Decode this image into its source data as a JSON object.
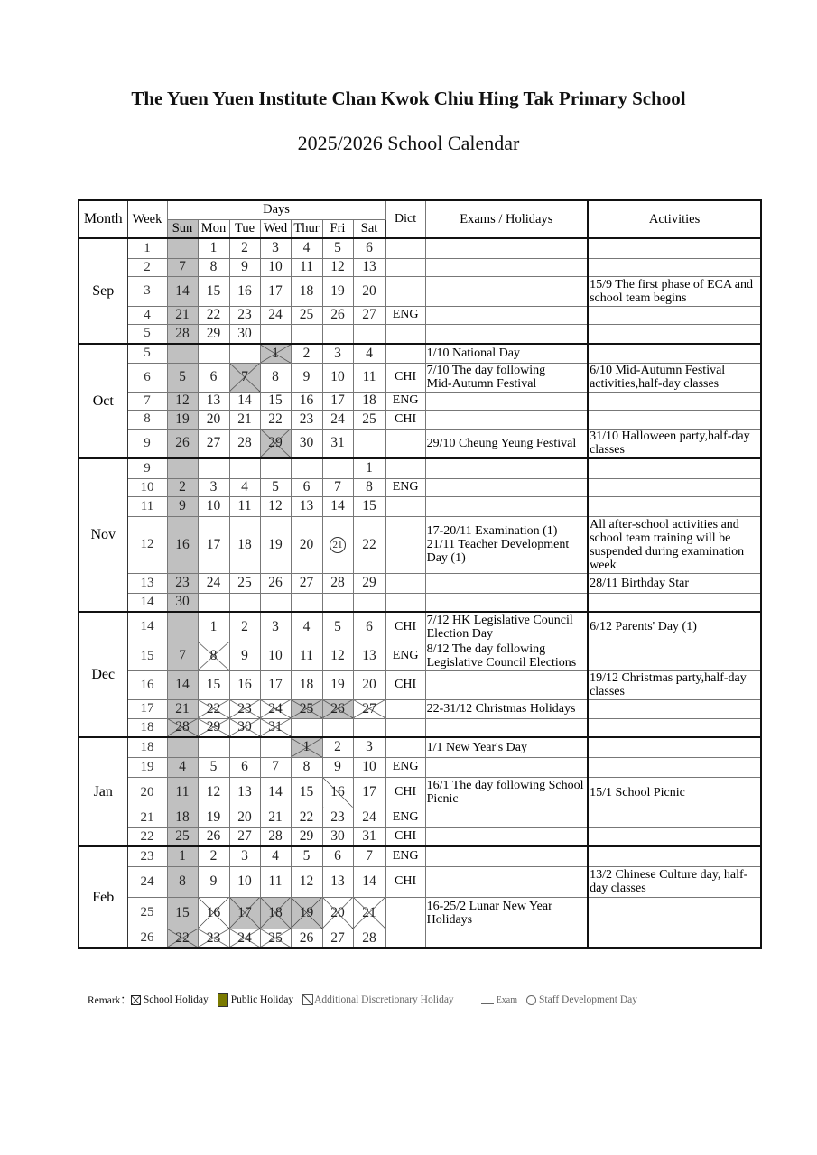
{
  "title": "The Yuen Yuen Institute Chan Kwok Chiu Hing Tak Primary School",
  "subtitle": "2025/2026 School Calendar",
  "headers": {
    "month": "Month",
    "week": "Week",
    "days": "Days",
    "weekdays": [
      "Sun",
      "Mon",
      "Tue",
      "Wed",
      "Thur",
      "Fri",
      "Sat"
    ],
    "dict": "Dict",
    "exams": "Exams / Holidays",
    "activities": "Activities"
  },
  "colors": {
    "sunday_shade": "#c0c0c0",
    "public_holiday_legend": "#7a7a00"
  },
  "mark_codes": {
    "X": "school-holiday",
    "P": "public-holiday",
    "S": "additional-discretionary-holiday",
    "U": "exam",
    "O": "staff-development-day"
  },
  "months": [
    {
      "name": "Sep",
      "rows": [
        {
          "week": "1",
          "days": [
            "",
            "1",
            "2",
            "3",
            "4",
            "5",
            "6"
          ],
          "marks": [
            "",
            "",
            "",
            "",
            "",
            "",
            ""
          ],
          "dict": "",
          "exam": "",
          "activity": ""
        },
        {
          "week": "2",
          "days": [
            "7",
            "8",
            "9",
            "10",
            "11",
            "12",
            "13"
          ],
          "marks": [
            "",
            "",
            "",
            "",
            "",
            "",
            ""
          ],
          "dict": "",
          "exam": "",
          "activity": ""
        },
        {
          "week": "3",
          "days": [
            "14",
            "15",
            "16",
            "17",
            "18",
            "19",
            "20"
          ],
          "marks": [
            "",
            "",
            "",
            "",
            "",
            "",
            ""
          ],
          "dict": "",
          "exam": "",
          "activity": "15/9 The first phase of ECA and school team begins"
        },
        {
          "week": "4",
          "days": [
            "21",
            "22",
            "23",
            "24",
            "25",
            "26",
            "27"
          ],
          "marks": [
            "",
            "",
            "",
            "",
            "",
            "",
            ""
          ],
          "dict": "ENG",
          "exam": "",
          "activity": ""
        },
        {
          "week": "5",
          "days": [
            "28",
            "29",
            "30",
            "",
            "",
            "",
            ""
          ],
          "marks": [
            "",
            "",
            "",
            "",
            "",
            "",
            ""
          ],
          "dict": "",
          "exam": "",
          "activity": ""
        }
      ]
    },
    {
      "name": "Oct",
      "rows": [
        {
          "week": "5",
          "days": [
            "",
            "",
            "",
            "1",
            "2",
            "3",
            "4"
          ],
          "marks": [
            "",
            "",
            "",
            "P",
            "",
            "",
            ""
          ],
          "dict": "",
          "exam": "1/10 National Day",
          "activity": ""
        },
        {
          "week": "6",
          "days": [
            "5",
            "6",
            "7",
            "8",
            "9",
            "10",
            "11"
          ],
          "marks": [
            "",
            "",
            "P",
            "",
            "",
            "",
            ""
          ],
          "dict": "CHI",
          "exam": "7/10 The day following\n  Mid-Autumn Festival",
          "activity": "6/10 Mid-Autumn Festival activities,half-day classes"
        },
        {
          "week": "7",
          "days": [
            "12",
            "13",
            "14",
            "15",
            "16",
            "17",
            "18"
          ],
          "marks": [
            "",
            "",
            "",
            "",
            "",
            "",
            ""
          ],
          "dict": "ENG",
          "exam": "",
          "activity": ""
        },
        {
          "week": "8",
          "days": [
            "19",
            "20",
            "21",
            "22",
            "23",
            "24",
            "25"
          ],
          "marks": [
            "",
            "",
            "",
            "",
            "",
            "",
            ""
          ],
          "dict": "CHI",
          "exam": "",
          "activity": ""
        },
        {
          "week": "9",
          "days": [
            "26",
            "27",
            "28",
            "29",
            "30",
            "31",
            ""
          ],
          "marks": [
            "",
            "",
            "",
            "P",
            "",
            "",
            ""
          ],
          "dict": "",
          "exam": "29/10 Cheung Yeung Festival",
          "activity": "31/10 Halloween party,half-day classes"
        }
      ]
    },
    {
      "name": "Nov",
      "rows": [
        {
          "week": "9",
          "days": [
            "",
            "",
            "",
            "",
            "",
            "",
            "1"
          ],
          "marks": [
            "",
            "",
            "",
            "",
            "",
            "",
            ""
          ],
          "dict": "",
          "exam": "",
          "activity": ""
        },
        {
          "week": "10",
          "days": [
            "2",
            "3",
            "4",
            "5",
            "6",
            "7",
            "8"
          ],
          "marks": [
            "",
            "",
            "",
            "",
            "",
            "",
            ""
          ],
          "dict": "ENG",
          "exam": "",
          "activity": ""
        },
        {
          "week": "11",
          "days": [
            "9",
            "10",
            "11",
            "12",
            "13",
            "14",
            "15"
          ],
          "marks": [
            "",
            "",
            "",
            "",
            "",
            "",
            ""
          ],
          "dict": "",
          "exam": "",
          "activity": ""
        },
        {
          "week": "12",
          "days": [
            "16",
            "17",
            "18",
            "19",
            "20",
            "21",
            "22"
          ],
          "marks": [
            "",
            "U",
            "U",
            "U",
            "U",
            "O",
            ""
          ],
          "dict": "",
          "exam": "17-20/11 Examination (1)\n21/11 Teacher Development Day (1)",
          "activity": "All after-school activities and school team training will be suspended during examination week"
        },
        {
          "week": "13",
          "days": [
            "23",
            "24",
            "25",
            "26",
            "27",
            "28",
            "29"
          ],
          "marks": [
            "",
            "",
            "",
            "",
            "",
            "",
            ""
          ],
          "dict": "",
          "exam": "",
          "activity": "28/11 Birthday Star"
        },
        {
          "week": "14",
          "days": [
            "30",
            "",
            "",
            "",
            "",
            "",
            ""
          ],
          "marks": [
            "",
            "",
            "",
            "",
            "",
            "",
            ""
          ],
          "dict": "",
          "exam": "",
          "activity": ""
        }
      ]
    },
    {
      "name": "Dec",
      "rows": [
        {
          "week": "14",
          "days": [
            "",
            "1",
            "2",
            "3",
            "4",
            "5",
            "6"
          ],
          "marks": [
            "",
            "",
            "",
            "",
            "",
            "",
            ""
          ],
          "dict": "CHI",
          "exam": "7/12 HK Legislative Council Election Day",
          "activity": "6/12 Parents' Day (1)"
        },
        {
          "week": "15",
          "days": [
            "7",
            "8",
            "9",
            "10",
            "11",
            "12",
            "13"
          ],
          "marks": [
            "",
            "X",
            "",
            "",
            "",
            "",
            ""
          ],
          "dict": "ENG",
          "exam": "8/12 The day following Legislative Council Elections",
          "activity": ""
        },
        {
          "week": "16",
          "days": [
            "14",
            "15",
            "16",
            "17",
            "18",
            "19",
            "20"
          ],
          "marks": [
            "",
            "",
            "",
            "",
            "",
            "",
            ""
          ],
          "dict": "CHI",
          "exam": "",
          "activity": "19/12 Christmas party,half-day classes"
        },
        {
          "week": "17",
          "days": [
            "21",
            "22",
            "23",
            "24",
            "25",
            "26",
            "27"
          ],
          "marks": [
            "",
            "X",
            "X",
            "X",
            "P",
            "P",
            "X"
          ],
          "dict": "",
          "exam": "22-31/12 Christmas Holidays",
          "activity": ""
        },
        {
          "week": "18",
          "days": [
            "28",
            "29",
            "30",
            "31",
            "",
            "",
            ""
          ],
          "marks": [
            "P",
            "X",
            "X",
            "X",
            "",
            "",
            ""
          ],
          "dict": "",
          "exam": "",
          "activity": ""
        }
      ]
    },
    {
      "name": "Jan",
      "rows": [
        {
          "week": "18",
          "days": [
            "",
            "",
            "",
            "",
            "1",
            "2",
            "3"
          ],
          "marks": [
            "",
            "",
            "",
            "",
            "P",
            "",
            ""
          ],
          "dict": "",
          "exam": "1/1 New Year's Day",
          "activity": ""
        },
        {
          "week": "19",
          "days": [
            "4",
            "5",
            "6",
            "7",
            "8",
            "9",
            "10"
          ],
          "marks": [
            "",
            "",
            "",
            "",
            "",
            "",
            ""
          ],
          "dict": "ENG",
          "exam": "",
          "activity": ""
        },
        {
          "week": "20",
          "days": [
            "11",
            "12",
            "13",
            "14",
            "15",
            "16",
            "17"
          ],
          "marks": [
            "",
            "",
            "",
            "",
            "",
            "S",
            ""
          ],
          "dict": "CHI",
          "exam": "16/1 The day following School Picnic",
          "activity": "15/1 School Picnic"
        },
        {
          "week": "21",
          "days": [
            "18",
            "19",
            "20",
            "21",
            "22",
            "23",
            "24"
          ],
          "marks": [
            "",
            "",
            "",
            "",
            "",
            "",
            ""
          ],
          "dict": "ENG",
          "exam": "",
          "activity": ""
        },
        {
          "week": "22",
          "days": [
            "25",
            "26",
            "27",
            "28",
            "29",
            "30",
            "31"
          ],
          "marks": [
            "",
            "",
            "",
            "",
            "",
            "",
            ""
          ],
          "dict": "CHI",
          "exam": "",
          "activity": ""
        }
      ]
    },
    {
      "name": "Feb",
      "rows": [
        {
          "week": "23",
          "days": [
            "1",
            "2",
            "3",
            "4",
            "5",
            "6",
            "7"
          ],
          "marks": [
            "",
            "",
            "",
            "",
            "",
            "",
            ""
          ],
          "dict": "ENG",
          "exam": "",
          "activity": ""
        },
        {
          "week": "24",
          "days": [
            "8",
            "9",
            "10",
            "11",
            "12",
            "13",
            "14"
          ],
          "marks": [
            "",
            "",
            "",
            "",
            "",
            "",
            ""
          ],
          "dict": "CHI",
          "exam": "",
          "activity": "13/2 Chinese Culture day, half-day classes"
        },
        {
          "week": "25",
          "days": [
            "15",
            "16",
            "17",
            "18",
            "19",
            "20",
            "21"
          ],
          "marks": [
            "",
            "X",
            "P",
            "P",
            "P",
            "X",
            "X"
          ],
          "dict": "",
          "exam": "16-25/2 Lunar New Year Holidays",
          "activity": ""
        },
        {
          "week": "26",
          "days": [
            "22",
            "23",
            "24",
            "25",
            "26",
            "27",
            "28"
          ],
          "marks": [
            "P",
            "X",
            "X",
            "X",
            "",
            "",
            ""
          ],
          "dict": "",
          "exam": "",
          "activity": ""
        }
      ]
    }
  ],
  "remark": {
    "label": "Remark：",
    "school_holiday": "School Holiday",
    "public_holiday": "Public Holiday",
    "discretionary": "Additional Discretionary Holiday",
    "exam": "Exam",
    "staff_dev": "Staff Development Day"
  }
}
